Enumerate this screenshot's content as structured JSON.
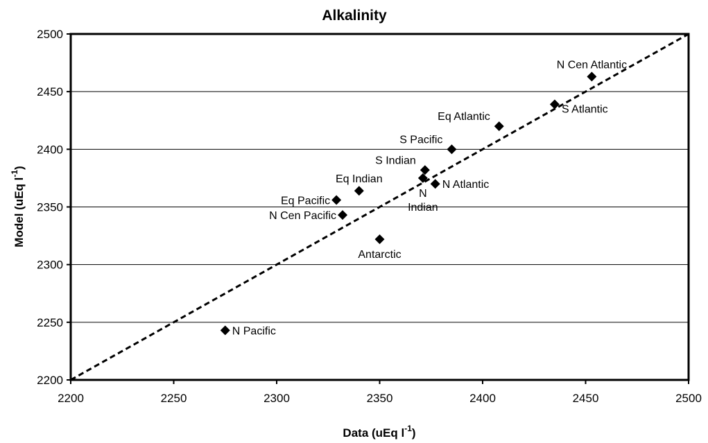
{
  "chart_data": {
    "type": "scatter",
    "title": "Alkalinity",
    "xlabel": "Data (uEq l",
    "xlabel_sup": "-1",
    "xlabel_end": ")",
    "ylabel": "Model (uEq l",
    "ylabel_sup": "-1",
    "ylabel_end": ")",
    "xlim": [
      2200,
      2500
    ],
    "ylim": [
      2200,
      2500
    ],
    "xticks": [
      "2200",
      "2250",
      "2300",
      "2350",
      "2400",
      "2450",
      "2500"
    ],
    "yticks": [
      "2200",
      "2250",
      "2300",
      "2350",
      "2400",
      "2450",
      "2500"
    ],
    "grid": "horizontal",
    "reference_line": {
      "style": "dashed",
      "from": [
        2200,
        2200
      ],
      "to": [
        2500,
        2500
      ]
    },
    "points": [
      {
        "label": "N Cen Atlantic",
        "x": 2453,
        "y": 2463,
        "label_pos": "above"
      },
      {
        "label": "S Atlantic",
        "x": 2435,
        "y": 2439,
        "label_pos": "right-below"
      },
      {
        "label": "Eq Atlantic",
        "x": 2408,
        "y": 2420,
        "label_pos": "left-above"
      },
      {
        "label": "S Pacific",
        "x": 2385,
        "y": 2400,
        "label_pos": "left-above"
      },
      {
        "label": "S Indian",
        "x": 2372,
        "y": 2382,
        "label_pos": "left-above"
      },
      {
        "label": "N Indian",
        "x": 2371,
        "y": 2375,
        "label_pos": "below",
        "lines": [
          "N",
          "Indian"
        ]
      },
      {
        "label": "N Atlantic",
        "x": 2377,
        "y": 2370,
        "label_pos": "right"
      },
      {
        "label": "Eq Indian",
        "x": 2340,
        "y": 2364,
        "label_pos": "above"
      },
      {
        "label": "Eq Pacific",
        "x": 2329,
        "y": 2356,
        "label_pos": "left"
      },
      {
        "label": "N Cen Pacific",
        "x": 2332,
        "y": 2343,
        "label_pos": "left"
      },
      {
        "label": "Antarctic",
        "x": 2350,
        "y": 2322,
        "label_pos": "below"
      },
      {
        "label": "N Pacific",
        "x": 2275,
        "y": 2243,
        "label_pos": "right"
      }
    ]
  }
}
